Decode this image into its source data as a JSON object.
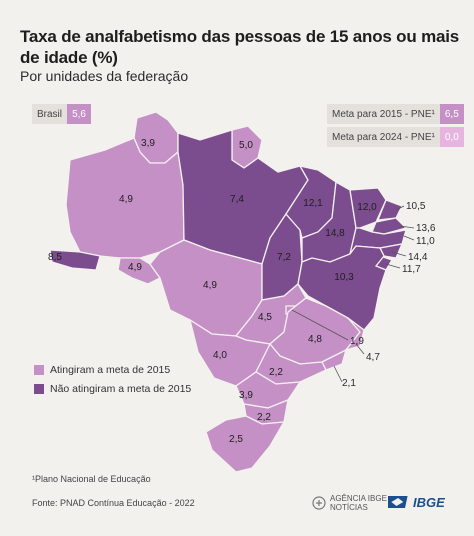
{
  "header": {
    "title": "Taxa de analfabetismo das pessoas de 15 anos ou mais de idade (%)",
    "subtitle": "Por unidades da federação"
  },
  "colors": {
    "met_goal": "#c590c6",
    "not_met_goal": "#7b4c8e",
    "goal_2024": "#e6b4df"
  },
  "indicators": {
    "brasil_label": "Brasil",
    "brasil_value": "5,6",
    "meta2015_label": "Meta para 2015 - PNE¹",
    "meta2015_value": "6,5",
    "meta2024_label": "Meta para 2024 - PNE¹",
    "meta2024_value": "0,0"
  },
  "states": {
    "RR": "3,9",
    "AP": "5,0",
    "AM": "4,9",
    "PA": "7,4",
    "AC": "8,5",
    "RO": "4,9",
    "MT": "4,9",
    "TO": "7,2",
    "MA": "12,1",
    "PI": "14,8",
    "CE": "12,0",
    "RN": "10,5",
    "PB": "13,6",
    "PE": "11,0",
    "AL": "14,4",
    "SE": "11,7",
    "BA": "10,3",
    "GO": "4,5",
    "DF": "1,9",
    "MG": "4,8",
    "ES": "4,7",
    "MS": "4,0",
    "RJ": "2,1",
    "SP": "2,2",
    "PR": "3,9",
    "SC": "2,2",
    "RS": "2,5"
  },
  "legend": {
    "met": "Atingiram a meta de 2015",
    "not_met": "Não atingiram a meta de 2015"
  },
  "footer": {
    "footnote": "¹Plano Nacional de Educação",
    "source": "Fonte: PNAD Contínua Educação - 2022",
    "agencia_line1": "AGÊNCIA IBGE",
    "agencia_line2": "NOTÍCIAS",
    "ibge": "IBGE"
  }
}
